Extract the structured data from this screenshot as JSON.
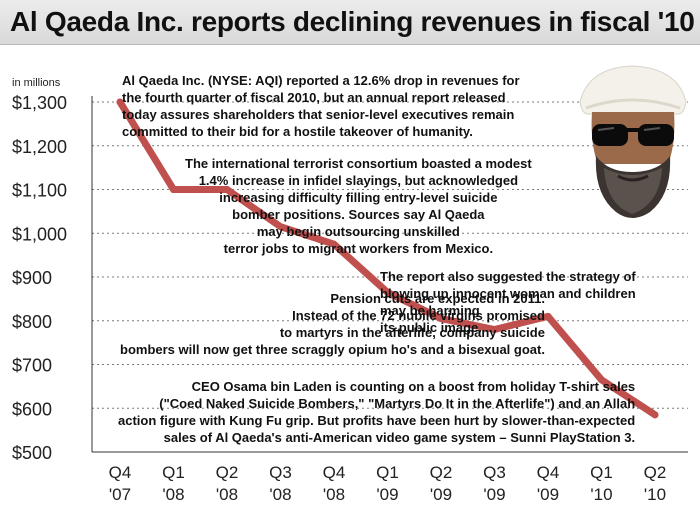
{
  "chart_data": {
    "type": "line",
    "title": "Al Qaeda Inc. reports declining revenues in fiscal '10",
    "ylabel": "in millions",
    "categories": [
      "Q4\n'07",
      "Q1\n'08",
      "Q2\n'08",
      "Q3\n'08",
      "Q4\n'08",
      "Q1\n'09",
      "Q2\n'09",
      "Q3\n'09",
      "Q4\n'09",
      "Q1\n'10",
      "Q2\n'10"
    ],
    "category_lines": [
      [
        "Q4",
        "'07"
      ],
      [
        "Q1",
        "'08"
      ],
      [
        "Q2",
        "'08"
      ],
      [
        "Q3",
        "'08"
      ],
      [
        "Q4",
        "'08"
      ],
      [
        "Q1",
        "'09"
      ],
      [
        "Q2",
        "'09"
      ],
      [
        "Q3",
        "'09"
      ],
      [
        "Q4",
        "'09"
      ],
      [
        "Q1",
        "'10"
      ],
      [
        "Q2",
        "'10"
      ]
    ],
    "values": [
      1300,
      1100,
      1100,
      1015,
      975,
      865,
      805,
      780,
      810,
      665,
      585
    ],
    "ylim": [
      500,
      1300
    ],
    "yticks": [
      500,
      600,
      700,
      800,
      900,
      1000,
      1100,
      1200,
      1300
    ],
    "ytick_labels": [
      "$500",
      "$600",
      "$700",
      "$800",
      "$900",
      "$1,000",
      "$1,100",
      "$1,200",
      "$1,300"
    ],
    "grid": "horizontal-dashed",
    "line_color": "#c0504d"
  },
  "annotations": [
    {
      "lines": [
        "Al Qaeda Inc. (NYSE: AQI) reported a 12.6% drop in revenues for",
        "the fourth quarter of fiscal 2010, but an annual report released",
        "today assures shareholders that senior-level executives remain",
        "committed to their bid for a hostile takeover of humanity."
      ]
    },
    {
      "lines": [
        "The international terrorist consortium boasted a modest",
        "1.4% increase in infidel slayings, but acknowledged",
        "increasing difficulty filling entry-level suicide",
        "bomber positions. Sources say Al Qaeda",
        "may begin outsourcing unskilled",
        "terror jobs to migrant workers from Mexico."
      ]
    },
    {
      "lines": [
        "Pension cuts are expected in 2011.",
        "Instead of the 72 nubile virgins promised",
        "to martyrs in the afterlife, company suicide",
        "bombers will now get three scraggly opium ho's and a bisexual goat."
      ]
    },
    {
      "lines": [
        "The report also suggested the strategy of",
        "blowing up innocent woman and children",
        "may be harming",
        "its public image."
      ]
    },
    {
      "lines": [
        "CEO Osama bin Laden is counting on a boost from holiday T-shirt sales",
        "(\"Coed Naked Suicide Bombers,\" \"Martyrs Do It in the Afterlife\") and an Allah",
        "action figure with Kung Fu grip. But profits have been hurt by slower-than-expected",
        "sales of Al Qaeda's anti-American video game system – Sunni PlayStation 3."
      ]
    }
  ]
}
